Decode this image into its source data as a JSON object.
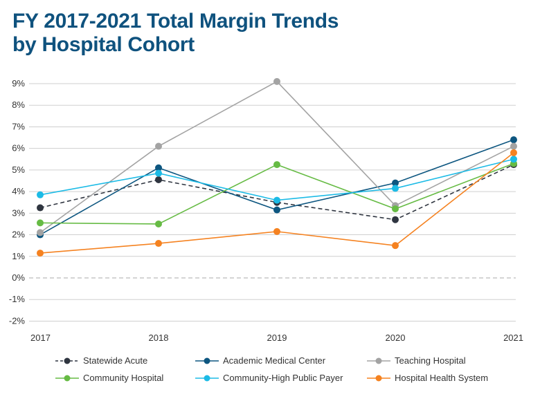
{
  "chart_data": {
    "type": "line",
    "title": [
      "FY 2017-2021 Total Margin Trends",
      "by Hospital Cohort"
    ],
    "categories": [
      "2017",
      "2018",
      "2019",
      "2020",
      "2021"
    ],
    "ylim": [
      -2,
      9
    ],
    "yticks": [
      "9%",
      "8%",
      "7%",
      "6%",
      "5%",
      "4%",
      "3%",
      "2%",
      "1%",
      "0%",
      "-1%",
      "-2%"
    ],
    "ytick_values": [
      9,
      8,
      7,
      6,
      5,
      4,
      3,
      2,
      1,
      0,
      -1,
      -2
    ],
    "grid": true,
    "legend_position": "bottom",
    "series": [
      {
        "name": "Statewide Acute",
        "color": "#2f3540",
        "dashed": true,
        "values": [
          3.25,
          4.55,
          3.5,
          2.7,
          5.25
        ]
      },
      {
        "name": "Academic Medical Center",
        "color": "#0d5680",
        "dashed": false,
        "values": [
          2.0,
          5.1,
          3.15,
          4.4,
          6.4
        ]
      },
      {
        "name": "Teaching Hospital",
        "color": "#a3a3a3",
        "dashed": false,
        "values": [
          2.1,
          6.1,
          9.1,
          3.35,
          6.1
        ]
      },
      {
        "name": "Community Hospital",
        "color": "#66bb44",
        "dashed": false,
        "values": [
          2.55,
          2.5,
          5.25,
          3.2,
          5.3
        ]
      },
      {
        "name": "Community-High Public Payer",
        "color": "#1cbbe6",
        "dashed": false,
        "values": [
          3.85,
          4.85,
          3.6,
          4.15,
          5.5
        ]
      },
      {
        "name": "Hospital Health System",
        "color": "#f58220",
        "dashed": false,
        "values": [
          1.15,
          1.6,
          2.15,
          1.5,
          5.8
        ]
      }
    ]
  }
}
